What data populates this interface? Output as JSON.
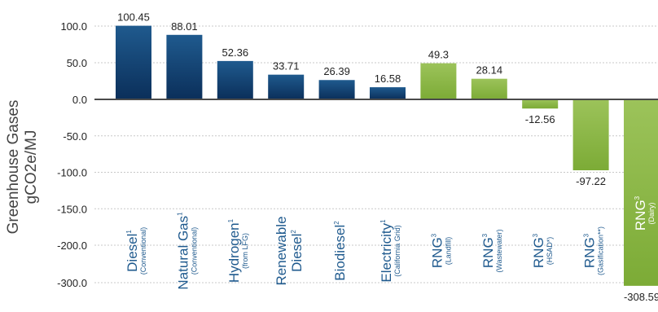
{
  "colors": {
    "fossil_top": "#1f5a8e",
    "fossil_bottom": "#0b2f5a",
    "renewable_top": "#9cc35a",
    "renewable_bottom": "#7cab36",
    "category_text_blue": "#1f5a8e",
    "category_text_on_bar": "#ffffff",
    "grid": "#c8c8c8",
    "zero_line": "#4a4a4a"
  },
  "chart_data": {
    "type": "bar",
    "ylabel": [
      "Greenhouse Gases",
      "gCO2e/MJ"
    ],
    "ylim": [
      -320,
      105
    ],
    "grid": true,
    "yticks": [
      {
        "value": 100,
        "label": "100.0"
      },
      {
        "value": 50,
        "label": "50.0"
      },
      {
        "value": 0,
        "label": "0.0"
      },
      {
        "value": -50,
        "label": "-50.0"
      },
      {
        "value": -100,
        "label": "-100.0"
      },
      {
        "value": -150,
        "label": "-150.0"
      },
      {
        "value": -200,
        "label": "-200.0"
      },
      {
        "value": -300,
        "label": "-300.0"
      }
    ],
    "bars": [
      {
        "category": "Diesel",
        "sub": "(Conventional)",
        "sup": "1",
        "value": 100.45,
        "label": "100.45",
        "group": "fossil"
      },
      {
        "category": "Natural Gas",
        "sub": "(Conventional)",
        "sup": "1",
        "value": 88.01,
        "label": "88.01",
        "group": "fossil"
      },
      {
        "category": "Hydrogen",
        "sub": "(from LFG)",
        "sup": "1",
        "value": 52.36,
        "label": "52.36",
        "group": "fossil"
      },
      {
        "category": "Renewable",
        "category2": "Diesel",
        "sup": "2",
        "value": 33.71,
        "label": "33.71",
        "group": "fossil"
      },
      {
        "category": "Biodiesel",
        "sup": "2",
        "value": 26.39,
        "label": "26.39",
        "group": "fossil"
      },
      {
        "category": "Electricity",
        "sub": "(California Grid)",
        "sup": "1",
        "value": 16.58,
        "label": "16.58",
        "group": "fossil"
      },
      {
        "category": "RNG",
        "sub": "(Landfill)",
        "sup": "3",
        "value": 49.3,
        "label": "49.3",
        "group": "renewable"
      },
      {
        "category": "RNG",
        "sub": "(Wastewater)",
        "sup": "3",
        "value": 28.14,
        "label": "28.14",
        "group": "renewable"
      },
      {
        "category": "RNG",
        "sub": "(HSAD*)",
        "sup": "3",
        "value": -12.56,
        "label": "-12.56",
        "group": "renewable"
      },
      {
        "category": "RNG",
        "sub": "(Gasification**)",
        "sup": "3",
        "value": -97.22,
        "label": "-97.22",
        "group": "renewable"
      },
      {
        "category": "RNG",
        "sub": "(Dairy)",
        "sup": "3",
        "value": -308.59,
        "label": "-308.59",
        "group": "renewable"
      }
    ]
  }
}
